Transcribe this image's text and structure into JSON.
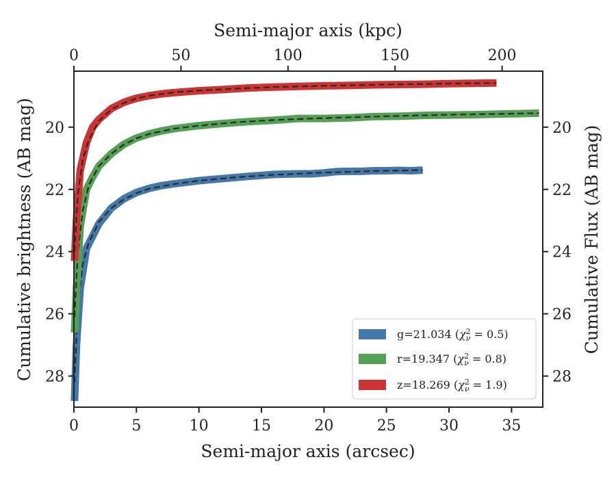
{
  "chart_data": {
    "type": "line",
    "xlabel": "Semi-major axis (arcsec)",
    "top_xlabel": "Semi-major axis (kpc)",
    "ylabel": "Cumulative brightness (AB mag)",
    "right_ylabel": "Cumulative Flux (AB mag)",
    "xlim": [
      0,
      37.5
    ],
    "ylim": [
      29,
      18.2
    ],
    "y_inverted": true,
    "x_ticks": [
      0,
      5,
      10,
      15,
      20,
      25,
      30,
      35
    ],
    "top_x_ticks": [
      0,
      50,
      100,
      150,
      200
    ],
    "kpc_per_arcsec": 5.84,
    "y_ticks": [
      20,
      22,
      24,
      26,
      28
    ],
    "grid": false,
    "legend_position": "lower-right",
    "series": [
      {
        "name": "g=21.034 (χ²ν = 0.5)",
        "legend_main": "g=21.034 (",
        "legend_chi": "χ",
        "legend_sup": "2",
        "legend_sub": "ν",
        "legend_value": " = 0.5)",
        "color": "#4478a8",
        "x": [
          0.05,
          0.2,
          0.5,
          1,
          1.5,
          2,
          3,
          4,
          5,
          6,
          7,
          8,
          10,
          12,
          14,
          15,
          16,
          18,
          19,
          20,
          21,
          22,
          23,
          24,
          25,
          26,
          27,
          27.9
        ],
        "y": [
          28.8,
          27.0,
          25.2,
          23.9,
          23.5,
          23.1,
          22.6,
          22.3,
          22.1,
          21.97,
          21.88,
          21.82,
          21.72,
          21.65,
          21.58,
          21.55,
          21.52,
          21.5,
          21.5,
          21.47,
          21.43,
          21.42,
          21.42,
          21.4,
          21.4,
          21.39,
          21.4,
          21.38
        ],
        "fit_x": [
          0.05,
          0.3,
          0.7,
          1.2,
          2,
          3,
          4,
          5,
          6,
          8,
          10,
          13,
          16,
          20,
          24,
          27.9
        ],
        "fit_y": [
          28.2,
          25.8,
          24.4,
          23.7,
          23.05,
          22.6,
          22.32,
          22.12,
          21.98,
          21.83,
          21.72,
          21.61,
          21.53,
          21.46,
          21.41,
          21.38
        ]
      },
      {
        "name": "r=19.347 (χ²ν = 0.8)",
        "legend_main": "r=19.347 (",
        "legend_chi": "χ",
        "legend_sup": "2",
        "legend_sub": "ν",
        "legend_value": " = 0.8)",
        "color": "#55a055",
        "x": [
          0.05,
          0.2,
          0.5,
          1,
          1.5,
          2,
          3,
          4,
          5,
          6,
          7,
          8,
          10,
          12,
          14,
          16,
          18,
          20,
          22,
          24,
          26,
          28,
          30,
          32,
          34,
          37.2
        ],
        "y": [
          26.6,
          25.2,
          23.2,
          22.0,
          21.6,
          21.25,
          20.85,
          20.55,
          20.35,
          20.22,
          20.12,
          20.05,
          19.95,
          19.88,
          19.82,
          19.78,
          19.72,
          19.72,
          19.7,
          19.66,
          19.65,
          19.62,
          19.61,
          19.6,
          19.58,
          19.55
        ],
        "fit_x": [
          0.05,
          0.3,
          0.7,
          1.2,
          2,
          3,
          4,
          5,
          6,
          8,
          10,
          13,
          16,
          20,
          25,
          30,
          37.2
        ],
        "fit_y": [
          26.1,
          24.1,
          22.7,
          21.85,
          21.25,
          20.85,
          20.56,
          20.36,
          20.22,
          20.05,
          19.95,
          19.84,
          19.77,
          19.71,
          19.65,
          19.6,
          19.55
        ]
      },
      {
        "name": "z=18.269 (χ²ν = 1.9)",
        "legend_main": "z=18.269 (",
        "legend_chi": "χ",
        "legend_sup": "2",
        "legend_sub": "ν",
        "legend_value": " = 1.9)",
        "color": "#cc3333",
        "x": [
          0.05,
          0.2,
          0.5,
          1,
          1.5,
          2,
          3,
          4,
          5,
          6,
          7,
          8,
          10,
          12,
          14,
          16,
          18,
          20,
          22,
          24,
          26,
          28,
          30,
          32,
          33.8
        ],
        "y": [
          24.3,
          23.0,
          21.4,
          20.5,
          20.0,
          19.75,
          19.4,
          19.2,
          19.07,
          18.99,
          18.93,
          18.89,
          18.83,
          18.79,
          18.74,
          18.71,
          18.69,
          18.67,
          18.66,
          18.64,
          18.63,
          18.62,
          18.6,
          18.59,
          18.58
        ],
        "fit_x": [
          0.05,
          0.3,
          0.7,
          1.2,
          2,
          3,
          4,
          5,
          6,
          8,
          10,
          13,
          16,
          20,
          25,
          30,
          33.8
        ],
        "fit_y": [
          24.0,
          22.2,
          21.05,
          20.4,
          19.8,
          19.43,
          19.22,
          19.08,
          18.99,
          18.88,
          18.82,
          18.76,
          18.71,
          18.67,
          18.63,
          18.6,
          18.58
        ]
      }
    ]
  }
}
